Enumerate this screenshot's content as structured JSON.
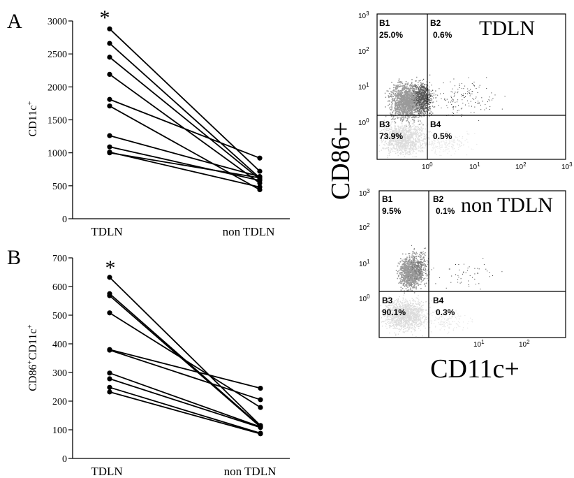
{
  "chart_data": [
    {
      "panel": "A",
      "type": "line",
      "ylabel": "CD11c",
      "ylabel_sup": "+",
      "categories": [
        "TDLN",
        "non TDLN"
      ],
      "ylim": [
        0,
        3000
      ],
      "yticks": [
        "0",
        "500",
        "1000",
        "1500",
        "2000",
        "2500",
        "3000"
      ],
      "annotation": "*",
      "pairs": [
        [
          2880,
          720
        ],
        [
          2660,
          620
        ],
        [
          2450,
          600
        ],
        [
          2190,
          540
        ],
        [
          1810,
          920
        ],
        [
          1710,
          440
        ],
        [
          1260,
          640
        ],
        [
          1090,
          580
        ],
        [
          1010,
          480
        ],
        [
          1000,
          620
        ]
      ]
    },
    {
      "panel": "B",
      "type": "line",
      "ylabel": "CD86",
      "ylabel_sup1": "+",
      "ylabel2": "CD11c",
      "ylabel_sup2": "+",
      "categories": [
        "TDLN",
        "non TDLN"
      ],
      "ylim": [
        0,
        700
      ],
      "yticks": [
        "0",
        "100",
        "200",
        "300",
        "400",
        "500",
        "600",
        "700"
      ],
      "annotation": "*",
      "pairs": [
        [
          632,
          115
        ],
        [
          575,
          112
        ],
        [
          568,
          110
        ],
        [
          508,
          178
        ],
        [
          380,
          245
        ],
        [
          378,
          205
        ],
        [
          298,
          110
        ],
        [
          278,
          108
        ],
        [
          248,
          88
        ],
        [
          232,
          86
        ]
      ]
    },
    {
      "type": "scatter",
      "title": "TDLN",
      "xlabel": "CD11c+",
      "ylabel": "CD86+",
      "quadrants": [
        {
          "name": "B1",
          "value": "25.0%"
        },
        {
          "name": "B2",
          "value": "0.6%"
        },
        {
          "name": "B3",
          "value": "73.9%"
        },
        {
          "name": "B4",
          "value": "0.5%"
        }
      ],
      "log_ticks": [
        "10",
        "0",
        "10",
        "1",
        "10",
        "2",
        "10",
        "3"
      ]
    },
    {
      "type": "scatter",
      "title": "non TDLN",
      "quadrants": [
        {
          "name": "B1",
          "value": "9.5%"
        },
        {
          "name": "B2",
          "value": "0.1%"
        },
        {
          "name": "B3",
          "value": "90.1%"
        },
        {
          "name": "B4",
          "value": "0.3%"
        }
      ],
      "log_ticks": [
        "10",
        "0",
        "10",
        "1",
        "10",
        "2",
        "10",
        "3"
      ]
    }
  ]
}
